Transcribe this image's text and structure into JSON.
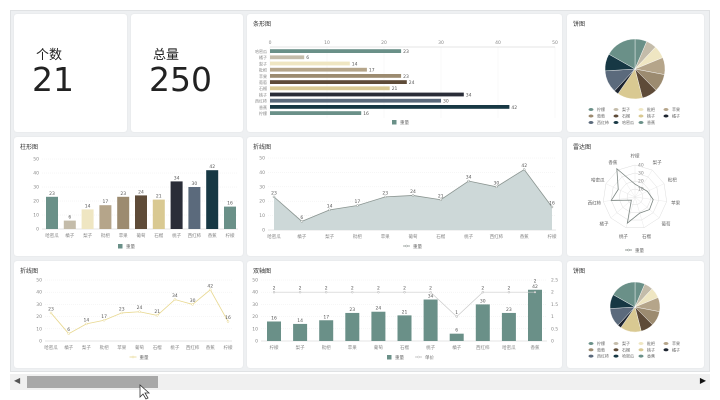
{
  "kpis": [
    {
      "label": "个数",
      "value": "21"
    },
    {
      "label": "总量",
      "value": "250"
    }
  ],
  "titles": {
    "hbar": "条形图",
    "column": "柱形图",
    "area": "折线图",
    "line": "折线图",
    "dual": "双轴图",
    "pie1": "饼图",
    "radar": "雷达图",
    "pie2": "饼图"
  },
  "colors": {
    "teal": "#6a9088",
    "line_gray": "#8a9490",
    "area_fill": "#cdd8d8",
    "line_yellow": "#e8d890"
  },
  "chart_data": [
    {
      "id": "hbar",
      "type": "bar",
      "orientation": "horizontal",
      "title": "条形图",
      "categories": [
        "哈密瓜",
        "橘子",
        "梨子",
        "枇杷",
        "苹果",
        "葡萄",
        "石榴",
        "桃子",
        "西红柿",
        "香蕉",
        "柠檬"
      ],
      "values": [
        23,
        6,
        14,
        17,
        23,
        24,
        21,
        34,
        30,
        42,
        16
      ],
      "xlim": [
        0,
        50
      ],
      "ticks": [
        "0",
        "10",
        "20",
        "30",
        "40",
        "50"
      ],
      "legend": [
        "重量"
      ],
      "bar_colors": [
        "#6a9088",
        "#c4bcaa",
        "#efe6c2",
        "#b5a58a",
        "#9c8b70",
        "#5e4b38",
        "#d9c992",
        "#2a2d38",
        "#5b6a7c",
        "#173844",
        "#6a9088"
      ]
    },
    {
      "id": "column",
      "type": "bar",
      "title": "柱形图",
      "categories": [
        "哈密瓜",
        "橘子",
        "梨子",
        "枇杷",
        "苹果",
        "葡萄",
        "石榴",
        "桃子",
        "西红柿",
        "香蕉",
        "柠檬"
      ],
      "values": [
        23,
        6,
        14,
        17,
        23,
        24,
        21,
        34,
        30,
        42,
        16
      ],
      "ylim": [
        0,
        50
      ],
      "ticks": [
        "0",
        "10",
        "20",
        "30",
        "40",
        "50"
      ],
      "legend": [
        "重量"
      ],
      "bar_colors": [
        "#6a9088",
        "#c4bcaa",
        "#efe6c2",
        "#b5a58a",
        "#9c8b70",
        "#5e4b38",
        "#d9c992",
        "#2a2d38",
        "#5b6a7c",
        "#173844",
        "#6a9088"
      ]
    },
    {
      "id": "area",
      "type": "area",
      "title": "折线图",
      "categories": [
        "哈密瓜",
        "橘子",
        "梨子",
        "枇杷",
        "苹果",
        "葡萄",
        "石榴",
        "桃子",
        "西红柿",
        "香蕉",
        "柠檬"
      ],
      "values": [
        23,
        6,
        14,
        17,
        23,
        24,
        21,
        34,
        30,
        42,
        16
      ],
      "ylim": [
        0,
        50
      ],
      "ticks": [
        "0",
        "10",
        "20",
        "30",
        "40",
        "50"
      ],
      "legend": [
        "重量"
      ]
    },
    {
      "id": "line",
      "type": "line",
      "title": "折线图",
      "categories": [
        "哈密瓜",
        "橘子",
        "梨子",
        "枇杷",
        "苹果",
        "葡萄",
        "石榴",
        "桃子",
        "西红柿",
        "香蕉",
        "柠檬"
      ],
      "values": [
        23,
        6,
        14,
        17,
        23,
        24,
        21,
        34,
        30,
        42,
        16
      ],
      "ylim": [
        0,
        50
      ],
      "ticks": [
        "0",
        "10",
        "20",
        "30",
        "40",
        "50"
      ],
      "legend": [
        "重量"
      ]
    },
    {
      "id": "dual",
      "type": "bar",
      "title": "双轴图",
      "categories": [
        "柠檬",
        "梨子",
        "枇杷",
        "苹果",
        "葡萄",
        "石榴",
        "桃子",
        "橘子",
        "西红柿",
        "哈密瓜",
        "香蕉"
      ],
      "series": [
        {
          "name": "重量",
          "type": "bar",
          "values": [
            16,
            14,
            17,
            23,
            24,
            21,
            34,
            6,
            30,
            23,
            42
          ]
        },
        {
          "name": "单价",
          "type": "line",
          "values": [
            2,
            2,
            2,
            2,
            2,
            2,
            2,
            1,
            2,
            2,
            2
          ]
        }
      ],
      "ylim": [
        0,
        50
      ],
      "ticks": [
        "0",
        "10",
        "20",
        "30",
        "40",
        "50"
      ],
      "y2lim": [
        0,
        2.5
      ],
      "ticks2": [
        "0",
        "0.5",
        "1",
        "1.5",
        "2",
        "2.5"
      ]
    },
    {
      "id": "pie1",
      "type": "pie",
      "title": "饼图",
      "categories": [
        "柠檬",
        "梨子",
        "枇杷",
        "苹果",
        "葡萄",
        "石榴",
        "桃子",
        "橘子",
        "西红柿",
        "哈密瓜",
        "香蕉"
      ],
      "values": [
        16,
        14,
        17,
        23,
        24,
        21,
        34,
        6,
        30,
        23,
        42
      ],
      "colors": [
        "#6a9088",
        "#c4bcaa",
        "#efe6c2",
        "#b5a58a",
        "#9c8b70",
        "#5e4b38",
        "#d9c992",
        "#1e2530",
        "#5b6a7c",
        "#173844",
        "#6a9088"
      ]
    },
    {
      "id": "radar",
      "type": "radar",
      "title": "雷达图",
      "categories": [
        "柠檬",
        "梨子",
        "枇杷",
        "苹果",
        "葡萄",
        "石榴",
        "桃子",
        "橘子",
        "西红柿",
        "哈密瓜",
        "香蕉"
      ],
      "values": [
        16,
        14,
        17,
        23,
        24,
        21,
        34,
        6,
        30,
        23,
        42
      ],
      "rlim": [
        0,
        40
      ],
      "ticks": [
        "10",
        "20",
        "30",
        "40"
      ],
      "legend": [
        "重量"
      ]
    },
    {
      "id": "pie2",
      "type": "pie",
      "title": "饼图",
      "categories": [
        "柠檬",
        "梨子",
        "枇杷",
        "苹果",
        "葡萄",
        "石榴",
        "桃子",
        "橘子",
        "西红柿",
        "哈密瓜",
        "香蕉"
      ],
      "values": [
        16,
        14,
        17,
        23,
        24,
        21,
        34,
        6,
        30,
        23,
        42
      ],
      "colors": [
        "#6a9088",
        "#c4bcaa",
        "#efe6c2",
        "#b5a58a",
        "#9c8b70",
        "#5e4b38",
        "#d9c992",
        "#1e2530",
        "#5b6a7c",
        "#173844",
        "#6a9088"
      ]
    }
  ]
}
